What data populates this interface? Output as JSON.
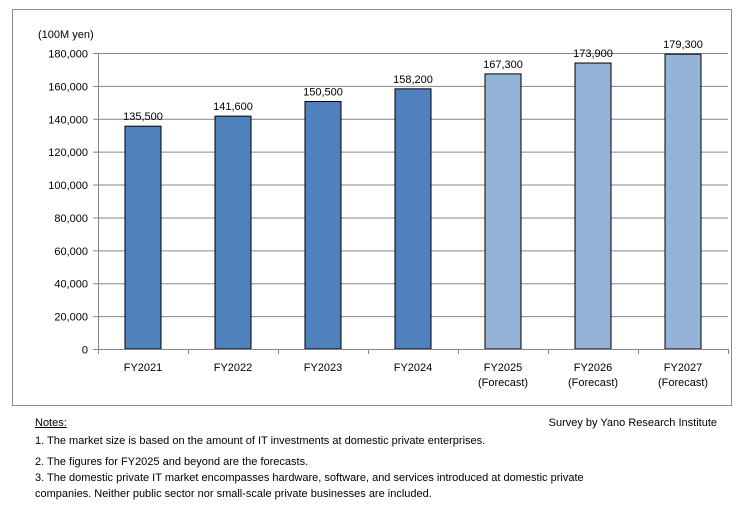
{
  "chart_data": {
    "type": "bar",
    "ylabel": "(100M yen)",
    "ylim": [
      0,
      180000
    ],
    "yticks": [
      0,
      20000,
      40000,
      60000,
      80000,
      100000,
      120000,
      140000,
      160000,
      180000
    ],
    "ytick_labels": [
      "0",
      "20,000",
      "40,000",
      "60,000",
      "80,000",
      "100,000",
      "120,000",
      "140,000",
      "160,000",
      "180,000"
    ],
    "grid": true,
    "categories": [
      [
        "FY2021"
      ],
      [
        "FY2022"
      ],
      [
        "FY2023"
      ],
      [
        "FY2024"
      ],
      [
        "FY2025",
        "(Forecast)"
      ],
      [
        "FY2026",
        "(Forecast)"
      ],
      [
        "FY2027",
        "(Forecast)"
      ]
    ],
    "values": [
      135500,
      141600,
      150500,
      158200,
      167300,
      173900,
      179300
    ],
    "data_labels": [
      "135,500",
      "141,600",
      "150,500",
      "158,200",
      "167,300",
      "173,900",
      "179,300"
    ],
    "forecast": [
      false,
      false,
      false,
      false,
      true,
      true,
      true
    ],
    "colors": {
      "actual": "#4f81bd",
      "forecast": "#95b3d7"
    }
  },
  "notes": {
    "heading": "Notes:",
    "source": "Survey by Yano Research Institute",
    "items": [
      "1.  The market size is based on the amount of IT investments at domestic private enterprises.",
      "2.  The figures for FY2025 and beyond are the forecasts.",
      "3.  The domestic private IT market encompasses hardware, software, and services introduced at domestic private",
      "companies.  Neither public sector nor small-scale private businesses are included."
    ]
  }
}
